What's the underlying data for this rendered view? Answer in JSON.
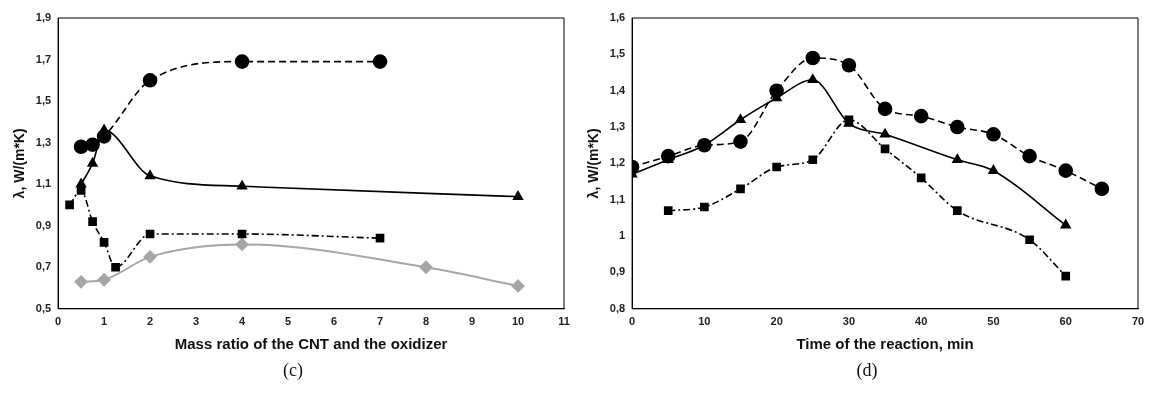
{
  "chart_data": [
    {
      "type": "line",
      "xlabel": "Mass ratio of the CNT and the oxidizer",
      "ylabel": "λ, W/(m*K)",
      "annotations": [
        "(c)"
      ],
      "xlim": [
        0,
        11
      ],
      "xticks": [
        0,
        1,
        2,
        3,
        4,
        5,
        6,
        7,
        8,
        9,
        10,
        11
      ],
      "ylim": [
        0.5,
        1.9
      ],
      "yticks": [
        {
          "value": 0.5,
          "label": "0,5"
        },
        {
          "value": 0.7,
          "label": "0,7"
        },
        {
          "value": 0.9,
          "label": "0,9"
        },
        {
          "value": 1.1,
          "label": "1,1"
        },
        {
          "value": 1.3,
          "label": "1,3"
        },
        {
          "value": 1.5,
          "label": "1,5"
        },
        {
          "value": 1.7,
          "label": "1,7"
        },
        {
          "value": 1.9,
          "label": "1,9"
        }
      ],
      "grid": false,
      "legend": false,
      "series": [
        {
          "color": "#000000",
          "marker": "circle",
          "line_style": "dashed",
          "x": [
            0.5,
            0.75,
            1,
            2,
            4,
            7
          ],
          "values": [
            1.28,
            1.29,
            1.33,
            1.6,
            1.69,
            1.69
          ]
        },
        {
          "color": "#000000",
          "marker": "triangle",
          "line_style": "solid",
          "x": [
            0.5,
            0.75,
            1,
            2,
            4,
            10
          ],
          "values": [
            1.1,
            1.2,
            1.36,
            1.14,
            1.09,
            1.04
          ]
        },
        {
          "color": "#000000",
          "marker": "square",
          "line_style": "dotted",
          "x": [
            0.25,
            0.5,
            0.75,
            1,
            1.25,
            2,
            4,
            7
          ],
          "values": [
            1.0,
            1.07,
            0.92,
            0.82,
            0.7,
            0.86,
            0.86,
            0.84
          ]
        },
        {
          "color": "#a6a6a6",
          "marker": "diamond",
          "line_style": "solid",
          "x": [
            0.5,
            1,
            2,
            4,
            8,
            10
          ],
          "values": [
            0.63,
            0.64,
            0.75,
            0.81,
            0.7,
            0.61
          ]
        }
      ]
    },
    {
      "type": "line",
      "xlabel": "Time of the reaction, min",
      "ylabel": "λ, W/(m*K)",
      "annotations": [
        "(d)"
      ],
      "xlim": [
        0,
        70
      ],
      "xticks": [
        0,
        10,
        20,
        30,
        40,
        50,
        60,
        70
      ],
      "ylim": [
        0.8,
        1.6
      ],
      "yticks": [
        {
          "value": 0.8,
          "label": "0,8"
        },
        {
          "value": 0.9,
          "label": "0,9"
        },
        1,
        {
          "value": 1.1,
          "label": "1,1"
        },
        {
          "value": 1.2,
          "label": "1,2"
        },
        {
          "value": 1.3,
          "label": "1,3"
        },
        {
          "value": 1.4,
          "label": "1,4"
        },
        {
          "value": 1.5,
          "label": "1,5"
        },
        {
          "value": 1.6,
          "label": "1,6"
        }
      ],
      "grid": false,
      "legend": false,
      "series": [
        {
          "color": "#000000",
          "marker": "circle",
          "line_style": "dashed",
          "x": [
            0,
            5,
            10,
            15,
            20,
            25,
            30,
            35,
            40,
            45,
            50,
            55,
            60,
            65
          ],
          "values": [
            1.19,
            1.22,
            1.25,
            1.26,
            1.4,
            1.49,
            1.47,
            1.35,
            1.33,
            1.3,
            1.28,
            1.22,
            1.18,
            1.13
          ]
        },
        {
          "color": "#000000",
          "marker": "triangle",
          "line_style": "solid",
          "x": [
            0,
            5,
            10,
            15,
            20,
            25,
            30,
            35,
            45,
            50,
            60
          ],
          "values": [
            1.17,
            1.21,
            1.25,
            1.32,
            1.38,
            1.43,
            1.31,
            1.28,
            1.21,
            1.18,
            1.03
          ]
        },
        {
          "color": "#000000",
          "marker": "square",
          "line_style": "dotted",
          "x": [
            5,
            10,
            15,
            20,
            25,
            30,
            35,
            40,
            45,
            55,
            60
          ],
          "values": [
            1.07,
            1.08,
            1.13,
            1.19,
            1.21,
            1.32,
            1.24,
            1.16,
            1.07,
            0.99,
            0.89
          ]
        }
      ]
    }
  ]
}
